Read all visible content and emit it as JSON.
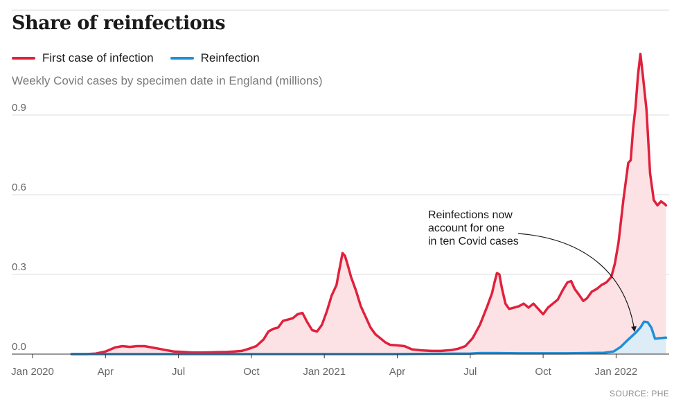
{
  "chart_data": {
    "type": "area",
    "title": "Share of reinfections",
    "subtitle": "Weekly Covid cases by specimen date in England (millions)",
    "source": "SOURCE: PHE",
    "annotation": [
      "Reinfections now",
      "account for one",
      "in ten Covid cases"
    ],
    "x_ticks": [
      {
        "label": "Jan 2020",
        "t": 0
      },
      {
        "label": "Apr",
        "t": 3
      },
      {
        "label": "Jul",
        "t": 6
      },
      {
        "label": "Oct",
        "t": 9
      },
      {
        "label": "Jan 2021",
        "t": 12
      },
      {
        "label": "Apr",
        "t": 15
      },
      {
        "label": "Jul",
        "t": 18
      },
      {
        "label": "Oct",
        "t": 21
      },
      {
        "label": "Jan 2022",
        "t": 24
      }
    ],
    "y_ticks": [
      "0.0",
      "0.3",
      "0.6",
      "0.9"
    ],
    "ylim": [
      0,
      1.17
    ],
    "xlim": [
      0,
      27.2
    ],
    "series": [
      {
        "name": "First case of infection",
        "color": "#e0213c",
        "fill": "#fde2e5",
        "points": [
          [
            1.6,
            0
          ],
          [
            2.2,
            0
          ],
          [
            2.6,
            0.002
          ],
          [
            3.0,
            0.01
          ],
          [
            3.4,
            0.025
          ],
          [
            3.7,
            0.03
          ],
          [
            4.0,
            0.027
          ],
          [
            4.3,
            0.03
          ],
          [
            4.6,
            0.03
          ],
          [
            4.9,
            0.025
          ],
          [
            5.2,
            0.02
          ],
          [
            5.5,
            0.015
          ],
          [
            5.8,
            0.01
          ],
          [
            6.2,
            0.008
          ],
          [
            6.6,
            0.006
          ],
          [
            7.0,
            0.006
          ],
          [
            7.5,
            0.007
          ],
          [
            8.0,
            0.008
          ],
          [
            8.3,
            0.01
          ],
          [
            8.6,
            0.012
          ],
          [
            8.9,
            0.02
          ],
          [
            9.2,
            0.03
          ],
          [
            9.5,
            0.055
          ],
          [
            9.7,
            0.085
          ],
          [
            9.9,
            0.095
          ],
          [
            10.1,
            0.1
          ],
          [
            10.3,
            0.125
          ],
          [
            10.5,
            0.13
          ],
          [
            10.7,
            0.135
          ],
          [
            10.9,
            0.15
          ],
          [
            11.1,
            0.155
          ],
          [
            11.3,
            0.12
          ],
          [
            11.5,
            0.09
          ],
          [
            11.7,
            0.085
          ],
          [
            11.9,
            0.11
          ],
          [
            12.1,
            0.16
          ],
          [
            12.3,
            0.22
          ],
          [
            12.5,
            0.26
          ],
          [
            12.6,
            0.31
          ],
          [
            12.75,
            0.38
          ],
          [
            12.85,
            0.37
          ],
          [
            12.95,
            0.34
          ],
          [
            13.1,
            0.29
          ],
          [
            13.3,
            0.24
          ],
          [
            13.5,
            0.18
          ],
          [
            13.7,
            0.14
          ],
          [
            13.9,
            0.1
          ],
          [
            14.1,
            0.075
          ],
          [
            14.3,
            0.06
          ],
          [
            14.5,
            0.045
          ],
          [
            14.7,
            0.035
          ],
          [
            15.0,
            0.033
          ],
          [
            15.3,
            0.03
          ],
          [
            15.6,
            0.018
          ],
          [
            16.0,
            0.014
          ],
          [
            16.4,
            0.012
          ],
          [
            16.8,
            0.012
          ],
          [
            17.2,
            0.015
          ],
          [
            17.5,
            0.02
          ],
          [
            17.8,
            0.03
          ],
          [
            18.1,
            0.06
          ],
          [
            18.4,
            0.11
          ],
          [
            18.7,
            0.18
          ],
          [
            18.9,
            0.23
          ],
          [
            19.0,
            0.27
          ],
          [
            19.1,
            0.305
          ],
          [
            19.2,
            0.3
          ],
          [
            19.3,
            0.25
          ],
          [
            19.45,
            0.19
          ],
          [
            19.6,
            0.17
          ],
          [
            19.8,
            0.175
          ],
          [
            20.0,
            0.18
          ],
          [
            20.2,
            0.19
          ],
          [
            20.4,
            0.175
          ],
          [
            20.6,
            0.19
          ],
          [
            20.8,
            0.17
          ],
          [
            21.0,
            0.15
          ],
          [
            21.2,
            0.175
          ],
          [
            21.4,
            0.19
          ],
          [
            21.6,
            0.205
          ],
          [
            21.8,
            0.24
          ],
          [
            22.0,
            0.27
          ],
          [
            22.15,
            0.275
          ],
          [
            22.3,
            0.245
          ],
          [
            22.5,
            0.22
          ],
          [
            22.65,
            0.2
          ],
          [
            22.8,
            0.21
          ],
          [
            23.0,
            0.235
          ],
          [
            23.2,
            0.245
          ],
          [
            23.4,
            0.26
          ],
          [
            23.6,
            0.27
          ],
          [
            23.8,
            0.29
          ],
          [
            23.95,
            0.34
          ],
          [
            24.1,
            0.42
          ],
          [
            24.3,
            0.58
          ],
          [
            24.5,
            0.72
          ],
          [
            24.6,
            0.73
          ],
          [
            24.7,
            0.85
          ],
          [
            24.8,
            0.93
          ],
          [
            24.9,
            1.05
          ],
          [
            25.0,
            1.13
          ],
          [
            25.1,
            1.05
          ],
          [
            25.25,
            0.92
          ],
          [
            25.4,
            0.68
          ],
          [
            25.55,
            0.58
          ],
          [
            25.7,
            0.56
          ],
          [
            25.85,
            0.575
          ],
          [
            26.0,
            0.565
          ],
          [
            26.05,
            0.56
          ]
        ]
      },
      {
        "name": "Reinfection",
        "color": "#1e8fd8",
        "fill": "#ddedf8",
        "points": [
          [
            1.6,
            0
          ],
          [
            5.0,
            0
          ],
          [
            10.0,
            0
          ],
          [
            15.0,
            0
          ],
          [
            18.0,
            0.002
          ],
          [
            18.4,
            0.004
          ],
          [
            19.0,
            0.004
          ],
          [
            20.0,
            0.003
          ],
          [
            22.0,
            0.003
          ],
          [
            23.5,
            0.005
          ],
          [
            23.9,
            0.01
          ],
          [
            24.2,
            0.028
          ],
          [
            24.5,
            0.055
          ],
          [
            24.8,
            0.08
          ],
          [
            25.0,
            0.1
          ],
          [
            25.15,
            0.122
          ],
          [
            25.3,
            0.12
          ],
          [
            25.45,
            0.1
          ],
          [
            25.6,
            0.058
          ],
          [
            25.8,
            0.06
          ],
          [
            26.05,
            0.062
          ]
        ]
      }
    ]
  }
}
